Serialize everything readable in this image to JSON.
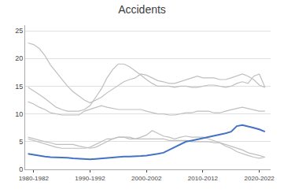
{
  "chart_data": {
    "type": "line",
    "title": "Accidents",
    "x": [
      1980,
      1981,
      1982,
      1983,
      1984,
      1985,
      1986,
      1987,
      1988,
      1989,
      1990,
      1991,
      1992,
      1993,
      1994,
      1995,
      1996,
      1997,
      1998,
      1999,
      2000,
      2001,
      2002,
      2003,
      2004,
      2005,
      2006,
      2007,
      2008,
      2009,
      2010,
      2011,
      2012,
      2013,
      2014,
      2015,
      2016,
      2017,
      2018,
      2019,
      2020,
      2021,
      2022
    ],
    "series": [
      {
        "color": "#BFBFBF",
        "values": [
          22.8,
          22.5,
          21.8,
          20.5,
          18.8,
          17.5,
          16.2,
          15.0,
          14.0,
          13.2,
          12.5,
          12.0,
          12.5,
          13.0,
          13.8,
          14.5,
          15.2,
          15.8,
          16.2,
          16.5,
          17.2,
          17.0,
          16.5,
          16.0,
          15.8,
          15.5,
          15.5,
          15.8,
          16.2,
          16.5,
          16.8,
          16.5,
          16.5,
          16.5,
          16.2,
          16.2,
          16.5,
          16.8,
          17.2,
          16.8,
          16.2,
          15.2,
          14.8
        ]
      },
      {
        "color": "#BFBFBF",
        "values": [
          14.8,
          14.2,
          13.5,
          12.8,
          12.0,
          11.2,
          10.8,
          10.5,
          10.5,
          10.5,
          10.8,
          11.5,
          13.0,
          14.5,
          16.5,
          18.0,
          19.0,
          19.0,
          18.5,
          17.8,
          17.0,
          16.2,
          15.5,
          15.0,
          15.0,
          15.0,
          14.8,
          15.0,
          15.0,
          14.8,
          14.8,
          15.0,
          15.2,
          15.2,
          15.0,
          14.8,
          15.0,
          15.5,
          15.8,
          15.5,
          16.8,
          17.2,
          14.8
        ]
      },
      {
        "color": "#BFBFBF",
        "values": [
          12.2,
          11.8,
          11.2,
          10.8,
          10.2,
          10.0,
          9.8,
          9.8,
          9.8,
          9.8,
          10.5,
          10.8,
          11.2,
          11.5,
          11.2,
          11.0,
          10.8,
          10.8,
          10.8,
          10.8,
          10.8,
          10.5,
          10.2,
          10.0,
          10.0,
          9.8,
          9.8,
          10.0,
          10.2,
          10.2,
          10.5,
          10.5,
          10.5,
          10.2,
          10.2,
          10.5,
          10.8,
          11.0,
          11.2,
          11.0,
          10.8,
          10.5,
          10.5
        ]
      },
      {
        "color": "#BFBFBF",
        "values": [
          5.8,
          5.5,
          5.2,
          5.0,
          4.8,
          4.5,
          4.5,
          4.5,
          4.5,
          4.2,
          4.0,
          3.8,
          4.0,
          4.5,
          5.0,
          5.5,
          5.8,
          5.8,
          5.5,
          5.5,
          5.8,
          6.2,
          7.0,
          6.5,
          6.0,
          5.8,
          5.5,
          5.8,
          6.0,
          5.8,
          5.8,
          5.8,
          5.5,
          5.2,
          4.8,
          4.2,
          3.8,
          3.2,
          2.8,
          2.5,
          2.2,
          2.0,
          2.2
        ]
      },
      {
        "color": "#BFBFBF",
        "values": [
          5.5,
          5.2,
          4.8,
          4.5,
          4.2,
          4.0,
          3.8,
          3.8,
          3.8,
          3.8,
          3.8,
          4.0,
          4.5,
          5.0,
          5.5,
          5.5,
          5.8,
          5.8,
          5.8,
          5.5,
          5.5,
          5.5,
          5.5,
          5.5,
          5.5,
          5.2,
          5.2,
          5.2,
          5.2,
          5.0,
          5.0,
          5.0,
          5.0,
          4.8,
          4.8,
          4.5,
          4.2,
          3.8,
          3.5,
          3.0,
          2.8,
          2.5,
          2.2
        ]
      },
      {
        "color": "#4472C4",
        "values": [
          2.8,
          2.6,
          2.4,
          2.3,
          2.2,
          2.2,
          2.1,
          2.1,
          2.0,
          1.9,
          1.9,
          1.8,
          1.9,
          2.0,
          2.1,
          2.2,
          2.3,
          2.3,
          2.3,
          2.3,
          2.4,
          2.5,
          2.6,
          2.8,
          3.0,
          3.5,
          4.0,
          4.5,
          5.0,
          5.2,
          5.4,
          5.6,
          5.8,
          6.0,
          6.2,
          6.5,
          6.8,
          7.8,
          8.0,
          7.8,
          7.5,
          7.2,
          6.8
        ]
      }
    ],
    "xlim": [
      1979.5,
      2023
    ],
    "xticks": [
      {
        "value": 1981,
        "label": "1980-1982"
      },
      {
        "value": 1991,
        "label": "1990-1992"
      },
      {
        "value": 2001,
        "label": "2000-2002"
      },
      {
        "value": 2011,
        "label": "2010-2012"
      },
      {
        "value": 2021,
        "label": "2020-2022"
      }
    ],
    "ylim": [
      0,
      26
    ],
    "yticks": [
      0,
      5,
      10,
      15,
      20,
      25
    ],
    "grid": true
  }
}
